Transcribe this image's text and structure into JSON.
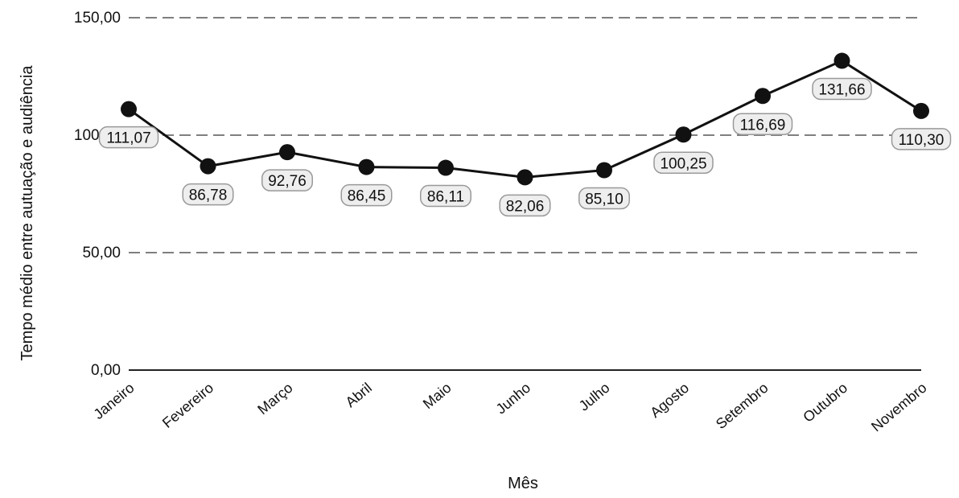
{
  "chart_data": {
    "type": "line",
    "title": "",
    "xlabel": "Mês",
    "ylabel": "Tempo médio entre autuação e audiência",
    "categories": [
      "Janeiro",
      "Fevereiro",
      "Março",
      "Abril",
      "Maio",
      "Junho",
      "Julho",
      "Agosto",
      "Setembro",
      "Outubro",
      "Novembro"
    ],
    "values": [
      111.07,
      86.78,
      92.76,
      86.45,
      86.11,
      82.06,
      85.1,
      100.25,
      116.69,
      131.66,
      110.3
    ],
    "data_labels": [
      "111,07",
      "86,78",
      "92,76",
      "86,45",
      "86,11",
      "82,06",
      "85,10",
      "100,25",
      "116,69",
      "131,66",
      "110,30"
    ],
    "yticks": [
      0,
      50,
      100,
      150
    ],
    "ytick_labels": [
      "0,00",
      "50,00",
      "100,00",
      "150,00"
    ],
    "ylim": [
      0,
      150
    ],
    "grid": true,
    "line_color": "#111111",
    "marker_color": "#111111"
  }
}
